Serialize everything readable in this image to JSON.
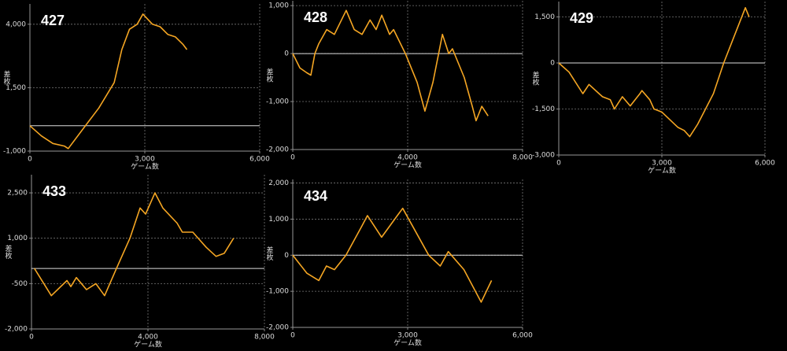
{
  "chart_data": [
    {
      "type": "line",
      "title": "427",
      "xlabel": "ゲーム数",
      "ylabel": "差枚",
      "color": "#f5a623",
      "zero_line": true,
      "grid": true,
      "x": [
        0,
        300,
        600,
        900,
        1000,
        1400,
        1800,
        2200,
        2400,
        2600,
        2800,
        2950,
        3200,
        3400,
        3600,
        3800,
        4000,
        4100
      ],
      "values": [
        0,
        -400,
        -700,
        -800,
        -900,
        -100,
        700,
        1700,
        3000,
        3800,
        4000,
        4400,
        4000,
        3900,
        3600,
        3500,
        3200,
        3000
      ],
      "xlim": [
        0,
        6000
      ],
      "ylim": [
        -1000,
        4800
      ],
      "xticks": [
        0,
        {
          "value": 3000,
          "label": "3,000"
        },
        {
          "value": 6000,
          "label": "6,000"
        }
      ],
      "yticks": [
        {
          "value": -1000,
          "label": "-1,000"
        },
        {
          "value": 1500,
          "label": "1,500"
        },
        {
          "value": 4000,
          "label": "4,000"
        }
      ]
    },
    {
      "type": "line",
      "title": "428",
      "xlabel": "ゲーム数",
      "ylabel": "差枚",
      "color": "#f5a623",
      "zero_line": true,
      "grid": true,
      "x": [
        0,
        250,
        490,
        630,
        770,
        900,
        1180,
        1450,
        1860,
        2140,
        2410,
        2690,
        2900,
        3100,
        3370,
        3510,
        3920,
        4330,
        4600,
        4880,
        5210,
        5430,
        5560,
        5970,
        6250,
        6380,
        6580,
        6800
      ],
      "values": [
        0,
        -300,
        -400,
        -450,
        0,
        200,
        500,
        400,
        900,
        500,
        400,
        700,
        500,
        800,
        400,
        500,
        0,
        -600,
        -1200,
        -600,
        400,
        0,
        100,
        -500,
        -1100,
        -1400,
        -1100,
        -1300
      ],
      "xlim": [
        0,
        8000
      ],
      "ylim": [
        -2000,
        1100
      ],
      "xticks": [
        0,
        {
          "value": 4000,
          "label": "4,000"
        },
        {
          "value": 8000,
          "label": "8,000"
        }
      ],
      "yticks": [
        {
          "value": -2000,
          "label": "-2,000"
        },
        {
          "value": -1000,
          "label": "-1,000"
        },
        0,
        {
          "value": 1000,
          "label": "1,000"
        }
      ]
    },
    {
      "type": "line",
      "title": "429",
      "xlabel": "ゲーム数",
      "ylabel": "差枚",
      "color": "#f5a623",
      "zero_line": true,
      "grid": true,
      "x": [
        0,
        300,
        700,
        880,
        1270,
        1500,
        1620,
        1850,
        2080,
        2360,
        2420,
        2650,
        2770,
        3000,
        3470,
        3650,
        3810,
        4040,
        4500,
        4800,
        5080,
        5430,
        5540
      ],
      "values": [
        0,
        -300,
        -1000,
        -700,
        -1100,
        -1200,
        -1500,
        -1100,
        -1400,
        -1000,
        -900,
        -1200,
        -1500,
        -1600,
        -2100,
        -2200,
        -2400,
        -2000,
        -1000,
        0,
        800,
        1800,
        1500
      ],
      "xlim": [
        0,
        6000
      ],
      "ylim": [
        -3000,
        2000
      ],
      "xticks": [
        0,
        {
          "value": 3000,
          "label": "3,000"
        },
        {
          "value": 6000,
          "label": "6,000"
        }
      ],
      "yticks": [
        {
          "value": -3000,
          "label": "-3,000"
        },
        {
          "value": -1500,
          "label": "-1,500"
        },
        0,
        {
          "value": 1500,
          "label": "1,500"
        }
      ]
    },
    {
      "type": "line",
      "title": "433",
      "xlabel": "ゲーム数",
      "ylabel": "差枚",
      "color": "#f5a623",
      "zero_line": true,
      "grid": true,
      "x": [
        100,
        680,
        1220,
        1350,
        1540,
        1890,
        2210,
        2510,
        2920,
        3380,
        3730,
        3920,
        4240,
        4510,
        5000,
        5180,
        5540,
        6000,
        6340,
        6620,
        6940
      ],
      "values": [
        0,
        -900,
        -400,
        -600,
        -300,
        -700,
        -500,
        -900,
        0,
        1000,
        2000,
        1800,
        2500,
        2000,
        1500,
        1200,
        1200,
        700,
        400,
        500,
        1000
      ],
      "xlim": [
        0,
        8000
      ],
      "ylim": [
        -2000,
        3100
      ],
      "xticks": [
        0,
        {
          "value": 4000,
          "label": "4,000"
        },
        {
          "value": 8000,
          "label": "8,000"
        }
      ],
      "yticks": [
        {
          "value": -2000,
          "label": "-2,000"
        },
        {
          "value": -500,
          "label": "-500"
        },
        {
          "value": 1000,
          "label": "1,000"
        },
        {
          "value": 2500,
          "label": "2,500"
        }
      ]
    },
    {
      "type": "line",
      "title": "434",
      "xlabel": "ゲーム数",
      "ylabel": "差枚",
      "color": "#f5a623",
      "zero_line": true,
      "grid": true,
      "x": [
        0,
        370,
        680,
        880,
        1090,
        1390,
        1800,
        1950,
        2320,
        2730,
        2870,
        3550,
        3850,
        4060,
        4470,
        4920,
        5190
      ],
      "values": [
        0,
        -500,
        -700,
        -300,
        -400,
        0,
        800,
        1100,
        500,
        1100,
        1300,
        0,
        -300,
        100,
        -400,
        -1300,
        -700
      ],
      "xlim": [
        0,
        6000
      ],
      "ylim": [
        -2000,
        2100
      ],
      "xticks": [
        0,
        {
          "value": 3000,
          "label": "3,000"
        },
        {
          "value": 6000,
          "label": "6,000"
        }
      ],
      "yticks": [
        {
          "value": -2000,
          "label": "-2,000"
        },
        {
          "value": -1000,
          "label": "-1,000"
        },
        0,
        {
          "value": 1000,
          "label": "1,000"
        },
        {
          "value": 2000,
          "label": "2,000"
        }
      ]
    }
  ]
}
